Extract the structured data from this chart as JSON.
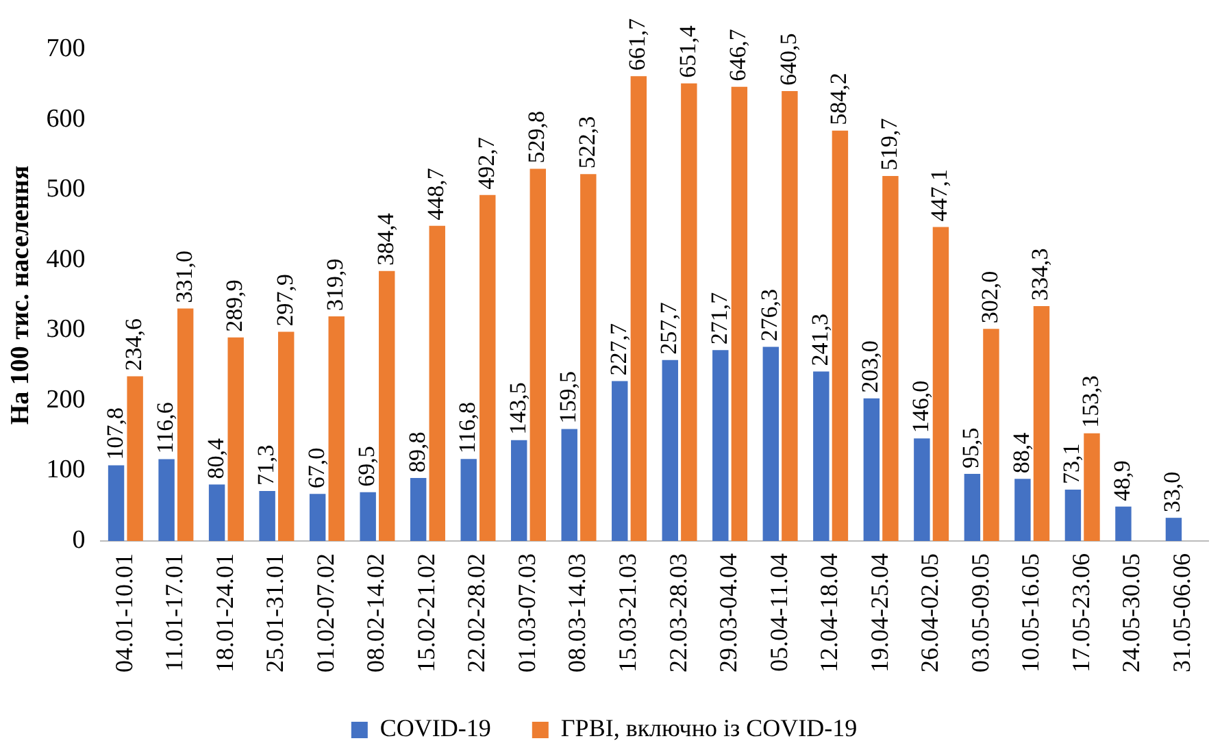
{
  "chart_data": {
    "type": "bar",
    "ylabel": "На 100 тис. населення",
    "categories": [
      "04.01-10.01",
      "11.01-17.01",
      "18.01-24.01",
      "25.01-31.01",
      "01.02-07.02",
      "08.02-14.02",
      "15.02-21.02",
      "22.02-28.02",
      "01.03-07.03",
      "08.03-14.03",
      "15.03-21.03",
      "22.03-28.03",
      "29.03-04.04",
      "05.04-11.04",
      "12.04-18.04",
      "19.04-25.04",
      "26.04-02.05",
      "03.05-09.05",
      "10.05-16.05",
      "17.05-23.06",
      "24.05-30.05",
      "31.05-06.06"
    ],
    "series": [
      {
        "name": "COVID-19",
        "color": "#4472c4",
        "values": [
          107.8,
          116.6,
          80.4,
          71.3,
          67.0,
          69.5,
          89.8,
          116.8,
          143.5,
          159.5,
          227.7,
          257.7,
          271.7,
          276.3,
          241.3,
          203.0,
          146.0,
          95.5,
          88.4,
          73.1,
          48.9,
          33.0
        ],
        "value_labels": [
          "107,8",
          "116,6",
          "80,4",
          "71,3",
          "67,0",
          "69,5",
          "89,8",
          "116,8",
          "143,5",
          "159,5",
          "227,7",
          "257,7",
          "271,7",
          "276,3",
          "241,3",
          "203,0",
          "146,0",
          "95,5",
          "88,4",
          "73,1",
          "48,9",
          "33,0"
        ]
      },
      {
        "name": "ГРВІ, включно із COVID-19",
        "color": "#ed7d31",
        "values": [
          234.6,
          331.0,
          289.9,
          297.9,
          319.9,
          384.4,
          448.7,
          492.7,
          529.8,
          522.3,
          661.7,
          651.4,
          646.7,
          640.5,
          584.2,
          519.7,
          447.1,
          302.0,
          334.3,
          153.3,
          null,
          null
        ],
        "value_labels": [
          "234,6",
          "331,0",
          "289,9",
          "297,9",
          "319,9",
          "384,4",
          "448,7",
          "492,7",
          "529,8",
          "522,3",
          "661,7",
          "651,4",
          "646,7",
          "640,5",
          "584,2",
          "519,7",
          "447,1",
          "302,0",
          "334,3",
          "153,3",
          null,
          null
        ]
      }
    ],
    "ylim": [
      0,
      700
    ],
    "yticks": [
      0,
      100,
      200,
      300,
      400,
      500,
      600,
      700
    ],
    "grid": false,
    "legend": "bottom"
  }
}
